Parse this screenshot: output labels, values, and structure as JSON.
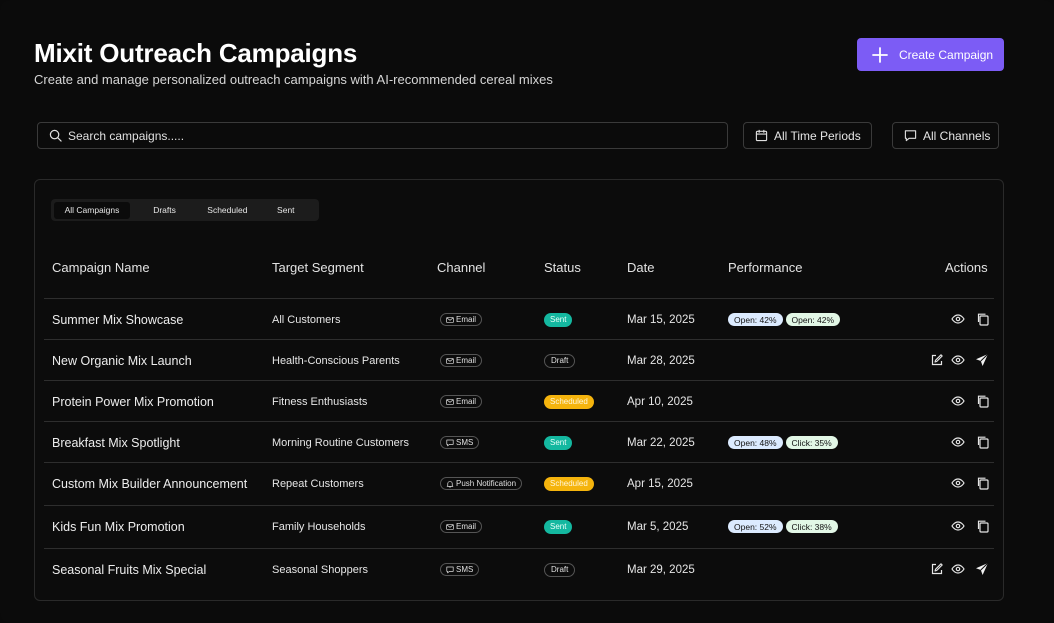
{
  "header": {
    "title": "Mixit Outreach Campaigns",
    "subtitle": "Create and manage personalized outreach campaigns with AI-recommended cereal mixes",
    "create_label": "Create Campaign"
  },
  "search": {
    "placeholder": "Search campaigns....."
  },
  "filters": {
    "time_label": "All Time Periods",
    "channel_label": "All Channels"
  },
  "tabs": [
    "All Campaigns",
    "Drafts",
    "Scheduled",
    "Sent"
  ],
  "columns": {
    "name": "Campaign Name",
    "segment": "Target Segment",
    "channel": "Channel",
    "status": "Status",
    "date": "Date",
    "performance": "Performance",
    "actions": "Actions"
  },
  "rows": [
    {
      "name": "Summer Mix Showcase",
      "segment": "All Customers",
      "channel": "Email",
      "status": "Sent",
      "date": "Mar 15, 2025",
      "perf1": "Open: 42%",
      "perf2": "Open: 42%"
    },
    {
      "name": "New Organic Mix Launch",
      "segment": "Health-Conscious Parents",
      "channel": "Email",
      "status": "Draft",
      "date": "Mar 28, 2025"
    },
    {
      "name": "Protein Power Mix Promotion",
      "segment": "Fitness Enthusiasts",
      "channel": "Email",
      "status": "Scheduled",
      "date": "Apr 10, 2025"
    },
    {
      "name": "Breakfast Mix Spotlight",
      "segment": "Morning Routine Customers",
      "channel": "SMS",
      "status": "Sent",
      "date": "Mar 22, 2025",
      "perf1": "Open: 48%",
      "perf2": "Click: 35%"
    },
    {
      "name": "Custom Mix Builder Announcement",
      "segment": "Repeat Customers",
      "channel": "Push Notification",
      "status": "Scheduled",
      "date": "Apr 15, 2025"
    },
    {
      "name": "Kids Fun Mix Promotion",
      "segment": "Family Households",
      "channel": "Email",
      "status": "Sent",
      "date": "Mar 5, 2025",
      "perf1": "Open: 52%",
      "perf2": "Click: 38%"
    },
    {
      "name": "Seasonal Fruits Mix Special",
      "segment": "Seasonal Shoppers",
      "channel": "SMS",
      "status": "Draft",
      "date": "Mar 29, 2025"
    }
  ],
  "colors": {
    "accent": "#7c5cf5",
    "sent": "#14b8a0",
    "scheduled": "#f5b40d",
    "open_badge": "#dcebff",
    "click_badge": "#e2f7e6"
  }
}
